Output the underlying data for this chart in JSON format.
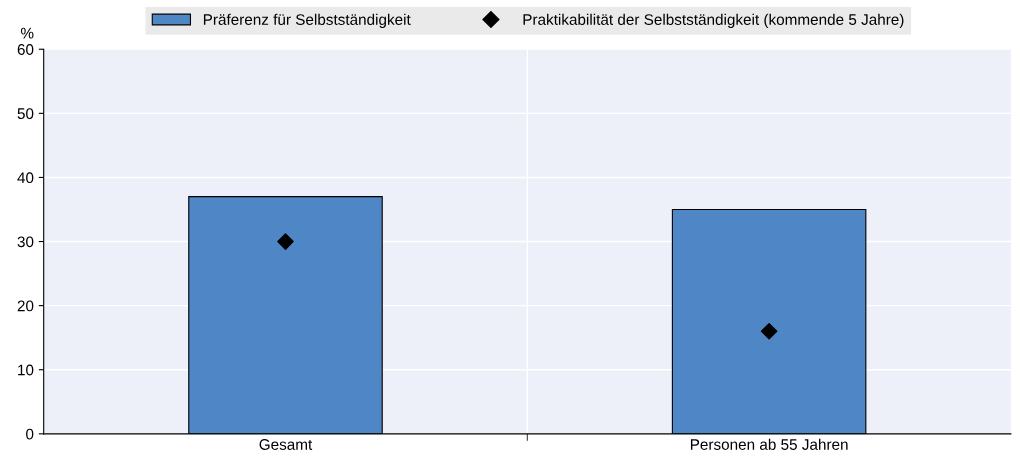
{
  "chart_data": {
    "type": "bar",
    "categories": [
      "Gesamt",
      "Personen ab 55 Jahren"
    ],
    "ylabel": "%",
    "ylim": [
      0,
      60
    ],
    "yticks": [
      0,
      10,
      20,
      30,
      40,
      50,
      60
    ],
    "grid": "y",
    "legend": "top",
    "series": [
      {
        "name": "Präferenz für Selbstständigkeit",
        "color": "#4f86c6",
        "values": [
          37,
          35
        ]
      },
      {
        "name": "Praktikabilität der Selbstständigkeit (kommende 5 Jahre)",
        "type": "scatter",
        "marker": "diamond",
        "color": "#000000",
        "values": [
          30,
          16
        ]
      }
    ]
  }
}
